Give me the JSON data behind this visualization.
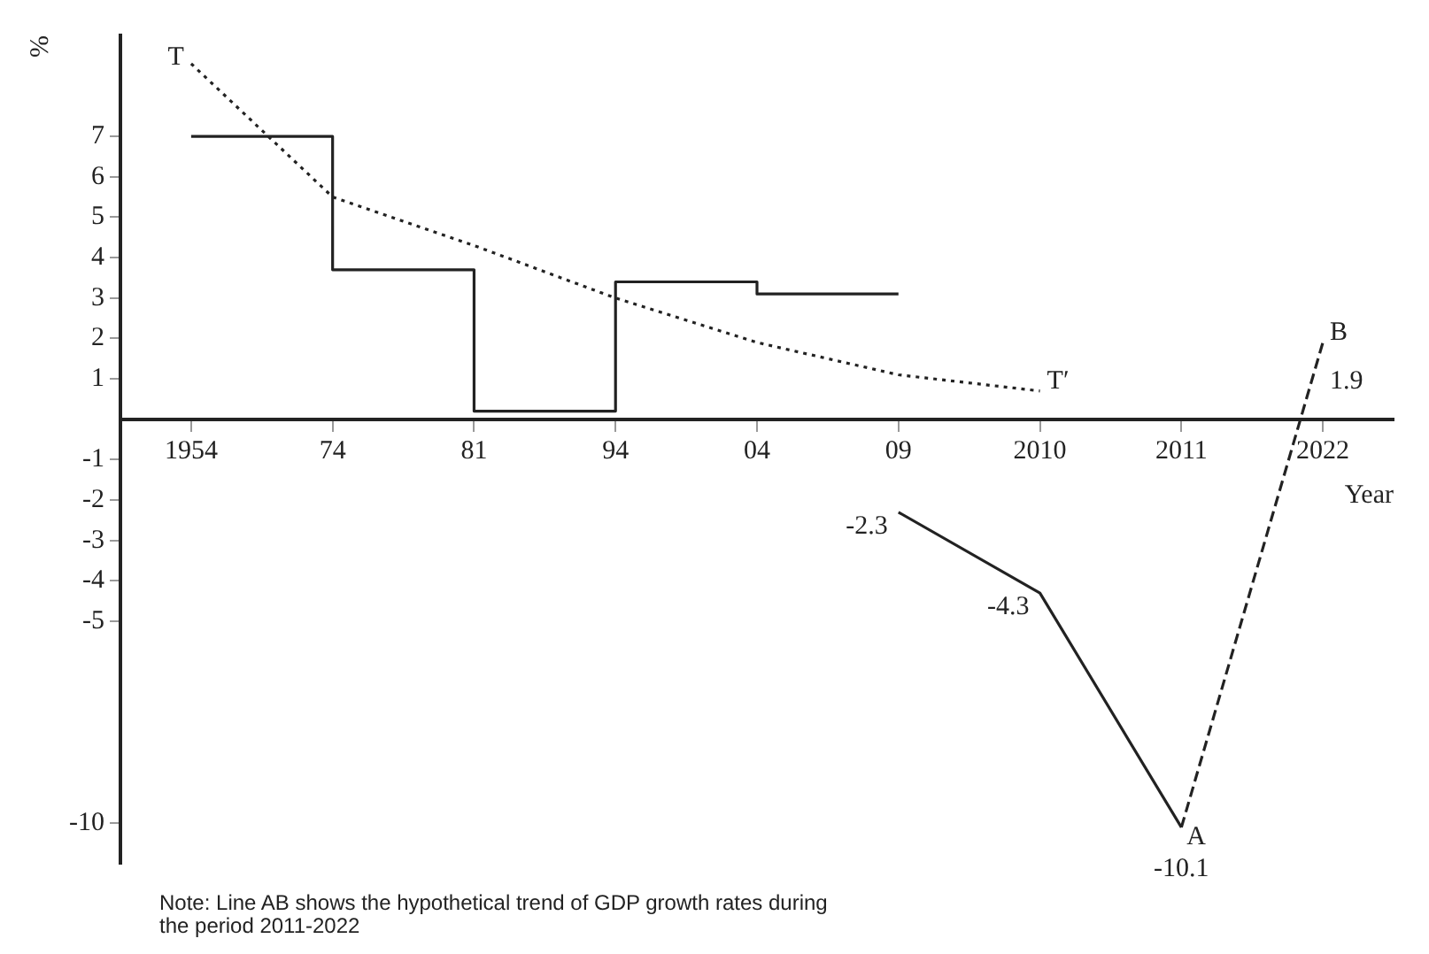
{
  "chart_data": {
    "type": "line",
    "xlabel": "Year",
    "ylabel": "%",
    "categories": [
      "1954",
      "74",
      "81",
      "94",
      "04",
      "09",
      "2010",
      "2011",
      "2022"
    ],
    "ylim": [
      -11,
      9.5
    ],
    "yticks": [
      -10,
      -5,
      -4,
      -3,
      -2,
      -1,
      1,
      2,
      3,
      4,
      5,
      6,
      7
    ],
    "series": [
      {
        "type": "step",
        "color": "#222222",
        "line_style": "solid",
        "values": [
          7,
          3.7,
          0.2,
          3.4,
          3.1,
          3.1,
          null,
          null,
          null
        ]
      },
      {
        "color": "#222222",
        "line_style": "dotted",
        "values": [
          8.8,
          5.5,
          4.3,
          3.0,
          1.9,
          1.1,
          0.7,
          null,
          null
        ]
      },
      {
        "color": "#222222",
        "line_style": "solid",
        "values": [
          null,
          null,
          null,
          null,
          null,
          -2.3,
          -4.3,
          -10.1,
          null
        ],
        "value_labels": [
          null,
          null,
          null,
          null,
          null,
          "-2.3",
          "-4.3",
          "-10.1",
          null
        ]
      },
      {
        "color": "#222222",
        "line_style": "dashed",
        "values": [
          null,
          null,
          null,
          null,
          null,
          null,
          null,
          -10.1,
          1.9
        ],
        "value_labels": [
          null,
          null,
          null,
          null,
          null,
          null,
          null,
          null,
          "1.9"
        ]
      }
    ],
    "annotations": [
      {
        "text": "T",
        "x": "1954",
        "y": 8.8
      },
      {
        "text": "T′",
        "x": "2010",
        "y": 0.7
      },
      {
        "text": "A",
        "x": "2011",
        "y": -10.1
      },
      {
        "text": "B",
        "x": "2022",
        "y": 1.9
      },
      "Note: Line AB shows the hypothetical trend of GDP growth rates during the period 2011-2022"
    ],
    "grid": false,
    "legend": false,
    "marker": "none"
  }
}
